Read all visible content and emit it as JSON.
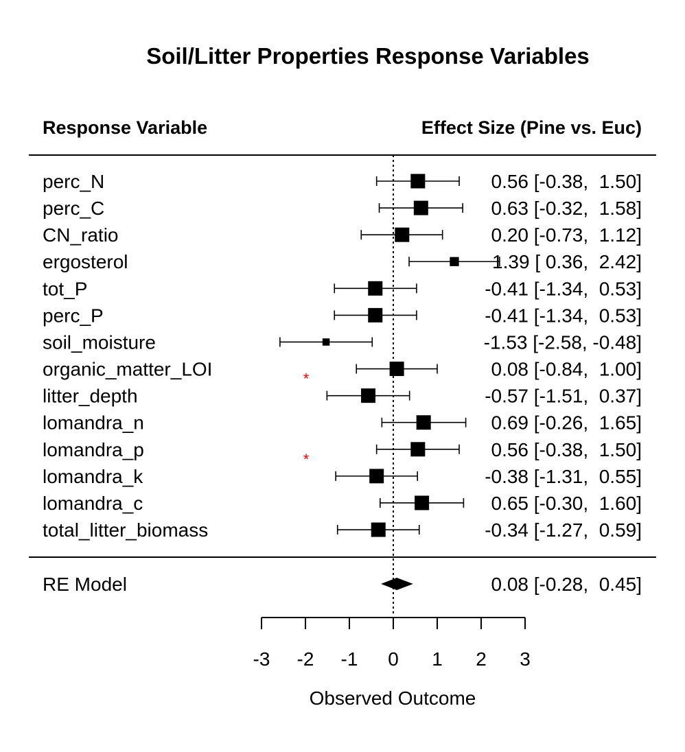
{
  "chart_data": {
    "type": "forest",
    "title": "Soil/Litter Properties Response Variables",
    "left_header": "Response Variable",
    "right_header": "Effect Size (Pine vs. Euc)",
    "xlabel": "Observed Outcome",
    "xlim": [
      -3,
      3
    ],
    "ticks": [
      -3,
      -2,
      -1,
      0,
      1,
      2,
      3
    ],
    "tick_labels": [
      "-3",
      "-2",
      "-1",
      "0",
      "1",
      "2",
      "3"
    ],
    "reference_line": 0,
    "significance_marker": "*",
    "significance_color": "#ff0000",
    "studies": [
      {
        "label": "perc_N",
        "estimate": 0.56,
        "lower": -0.38,
        "upper": 1.5,
        "weight": 1.0,
        "ci_text": "0.56 [-0.38,  1.50]",
        "marker": ""
      },
      {
        "label": "perc_C",
        "estimate": 0.63,
        "lower": -0.32,
        "upper": 1.58,
        "weight": 1.0,
        "ci_text": "0.63 [-0.32,  1.58]",
        "marker": ""
      },
      {
        "label": "CN_ratio",
        "estimate": 0.2,
        "lower": -0.73,
        "upper": 1.12,
        "weight": 1.0,
        "ci_text": "0.20 [-0.73,  1.12]",
        "marker": ""
      },
      {
        "label": "ergosterol",
        "estimate": 1.39,
        "lower": 0.36,
        "upper": 2.42,
        "weight": 0.4,
        "ci_text": "1.39 [ 0.36,  2.42]",
        "marker": ""
      },
      {
        "label": "tot_P",
        "estimate": -0.41,
        "lower": -1.34,
        "upper": 0.53,
        "weight": 1.0,
        "ci_text": "-0.41 [-1.34,  0.53]",
        "marker": ""
      },
      {
        "label": "perc_P",
        "estimate": -0.41,
        "lower": -1.34,
        "upper": 0.53,
        "weight": 1.0,
        "ci_text": "-0.41 [-1.34,  0.53]",
        "marker": ""
      },
      {
        "label": "soil_moisture",
        "estimate": -1.53,
        "lower": -2.58,
        "upper": -0.48,
        "weight": 0.25,
        "ci_text": "-1.53 [-2.58, -0.48]",
        "marker": ""
      },
      {
        "label": "organic_matter_LOI",
        "estimate": 0.08,
        "lower": -0.84,
        "upper": 1.0,
        "weight": 1.0,
        "ci_text": "0.08 [-0.84,  1.00]",
        "marker": "*"
      },
      {
        "label": "litter_depth",
        "estimate": -0.57,
        "lower": -1.51,
        "upper": 0.37,
        "weight": 1.0,
        "ci_text": "-0.57 [-1.51,  0.37]",
        "marker": ""
      },
      {
        "label": "lomandra_n",
        "estimate": 0.69,
        "lower": -0.26,
        "upper": 1.65,
        "weight": 1.0,
        "ci_text": "0.69 [-0.26,  1.65]",
        "marker": ""
      },
      {
        "label": "lomandra_p",
        "estimate": 0.56,
        "lower": -0.38,
        "upper": 1.5,
        "weight": 1.0,
        "ci_text": "0.56 [-0.38,  1.50]",
        "marker": "*"
      },
      {
        "label": "lomandra_k",
        "estimate": -0.38,
        "lower": -1.31,
        "upper": 0.55,
        "weight": 1.0,
        "ci_text": "-0.38 [-1.31,  0.55]",
        "marker": ""
      },
      {
        "label": "lomandra_c",
        "estimate": 0.65,
        "lower": -0.3,
        "upper": 1.6,
        "weight": 1.0,
        "ci_text": "0.65 [-0.30,  1.60]",
        "marker": ""
      },
      {
        "label": "total_litter_biomass",
        "estimate": -0.34,
        "lower": -1.27,
        "upper": 0.59,
        "weight": 1.0,
        "ci_text": "-0.34 [-1.27,  0.59]",
        "marker": ""
      }
    ],
    "summary": {
      "label": "RE Model",
      "estimate": 0.08,
      "lower": -0.28,
      "upper": 0.45,
      "ci_text": "0.08 [-0.28,  0.45]"
    }
  }
}
